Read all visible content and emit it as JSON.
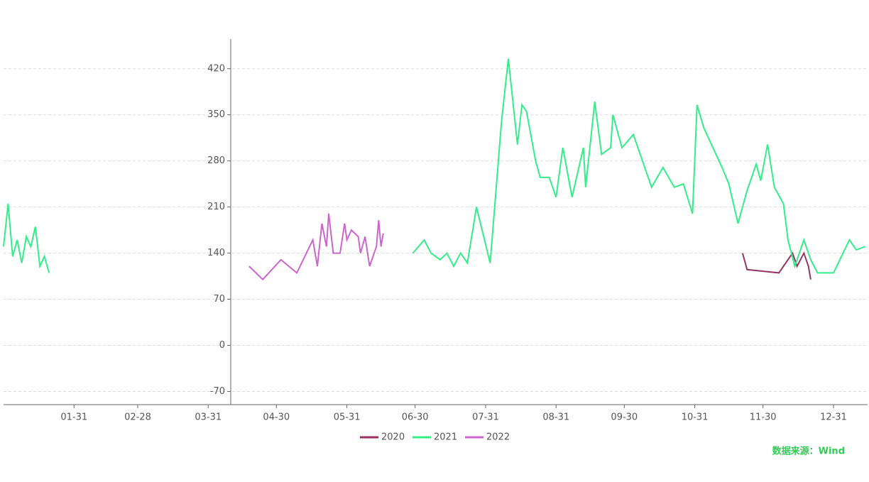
{
  "chart_data": {
    "type": "line",
    "series": [
      {
        "name": "2020",
        "color": "#993366",
        "x": [
          325,
          327,
          341,
          347,
          349,
          352,
          354,
          355
        ],
        "values": [
          140,
          115,
          110,
          140,
          120,
          140,
          120,
          100
        ]
      },
      {
        "name": "2021",
        "color": "#33ee88",
        "x": [
          0,
          2,
          4,
          6,
          8,
          10,
          12,
          14,
          16,
          18,
          20,
          100,
          180,
          185,
          188,
          192,
          195,
          198,
          201,
          204,
          208,
          214,
          219,
          222,
          226,
          228,
          230,
          234,
          236,
          240,
          243,
          246,
          250,
          255,
          256,
          260,
          263,
          267,
          268,
          272,
          277,
          282,
          285,
          290,
          295,
          299,
          303,
          305,
          308,
          312,
          316,
          319,
          323,
          327,
          331,
          333,
          336,
          339,
          343,
          345,
          348,
          352,
          355,
          358,
          365,
          372,
          375,
          379
        ],
        "values": [
          150,
          215,
          135,
          160,
          125,
          165,
          150,
          180,
          120,
          135,
          110,
          null,
          140,
          160,
          140,
          130,
          140,
          120,
          140,
          125,
          210,
          125,
          340,
          435,
          305,
          365,
          355,
          280,
          255,
          255,
          225,
          300,
          225,
          300,
          240,
          370,
          290,
          300,
          350,
          300,
          320,
          270,
          240,
          270,
          240,
          245,
          200,
          365,
          330,
          300,
          270,
          245,
          185,
          235,
          275,
          250,
          305,
          240,
          215,
          160,
          120,
          160,
          130,
          110,
          110,
          160,
          145,
          150
        ]
      },
      {
        "name": "2022",
        "color": "#cc66cc",
        "x": [
          108,
          114,
          122,
          129,
          136,
          138,
          140,
          142,
          143,
          145,
          148,
          150,
          151,
          153,
          156,
          157,
          159,
          161,
          164,
          165,
          166,
          167
        ],
        "values": [
          120,
          100,
          130,
          110,
          160,
          120,
          185,
          150,
          200,
          140,
          140,
          185,
          160,
          175,
          165,
          140,
          165,
          120,
          150,
          190,
          150,
          170
        ]
      }
    ],
    "xlim": [
      0,
      380
    ],
    "xticks": [
      {
        "value": 31,
        "label": "01-31"
      },
      {
        "value": 59,
        "label": "02-28"
      },
      {
        "value": 90,
        "label": "03-31"
      },
      {
        "value": 120,
        "label": "04-30"
      },
      {
        "value": 151,
        "label": "05-31"
      },
      {
        "value": 181,
        "label": "06-30"
      },
      {
        "value": 212,
        "label": "07-31"
      },
      {
        "value": 243,
        "label": "08-31"
      },
      {
        "value": 273,
        "label": "09-30"
      },
      {
        "value": 304,
        "label": "10-31"
      },
      {
        "value": 334,
        "label": "11-30"
      },
      {
        "value": 365,
        "label": "12-31"
      }
    ],
    "ylim": [
      -90,
      465
    ],
    "yticks": [
      -70,
      0,
      70,
      140,
      210,
      280,
      350,
      420
    ],
    "grid": true,
    "source": "数据来源：Wind"
  }
}
